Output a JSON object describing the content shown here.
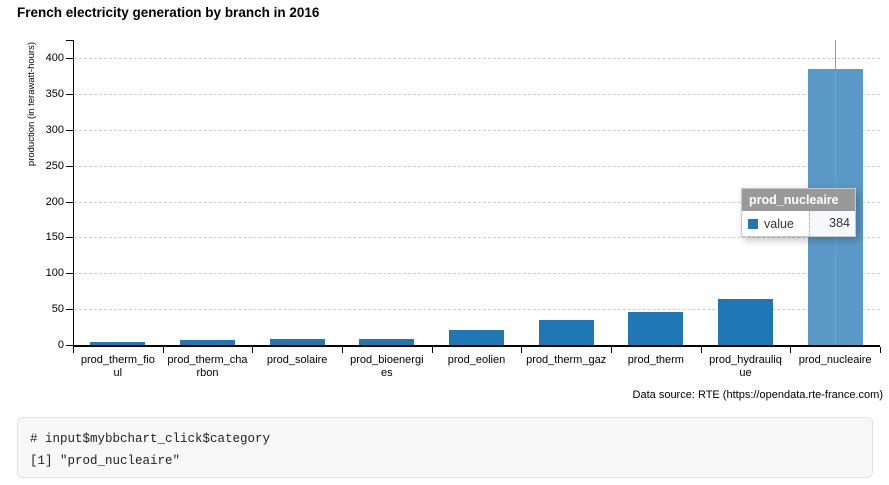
{
  "chart_data": {
    "type": "bar",
    "title": "French electricity generation by branch in 2016",
    "xlabel": "",
    "ylabel": "production (in terawatt-hours)",
    "ylim": [
      0,
      427
    ],
    "yticks": [
      0,
      50,
      100,
      150,
      200,
      250,
      300,
      350,
      400
    ],
    "grid": "horizontal-dashed",
    "legend": "none",
    "categories": [
      "prod_therm_fioul",
      "prod_therm_charbon",
      "prod_solaire",
      "prod_bioenergies",
      "prod_eolien",
      "prod_therm_gaz",
      "prod_therm",
      "prod_hydraulique",
      "prod_nucleaire"
    ],
    "values": [
      4,
      7,
      8,
      9,
      21,
      35,
      46,
      64,
      384
    ],
    "label_lines": [
      [
        "prod_therm_fio",
        "ul"
      ],
      [
        "prod_therm_cha",
        "rbon"
      ],
      [
        "prod_solaire"
      ],
      [
        "prod_bioenergi",
        "es"
      ],
      [
        "prod_eolien"
      ],
      [
        "prod_therm_gaz"
      ],
      [
        "prod_therm"
      ],
      [
        "prod_hydrauliq",
        "ue"
      ],
      [
        "prod_nucleaire"
      ]
    ],
    "highlighted_category": "prod_nucleaire",
    "colors": {
      "bar": "#1f77b4",
      "bar_highlight": "#5b9ac8",
      "grid": "#cccccc",
      "axis": "#000000",
      "crosshair": "#999999"
    }
  },
  "tooltip": {
    "title": "prod_nucleaire",
    "series_label": "value",
    "value": "384",
    "swatch_color": "#1f77b4",
    "header_bg": "#999999"
  },
  "data_source": "Data source: RTE (https://opendata.rte-france.com)",
  "console": {
    "lines": [
      "# input$mybbchart_click$category",
      "[1] \"prod_nucleaire\""
    ]
  }
}
